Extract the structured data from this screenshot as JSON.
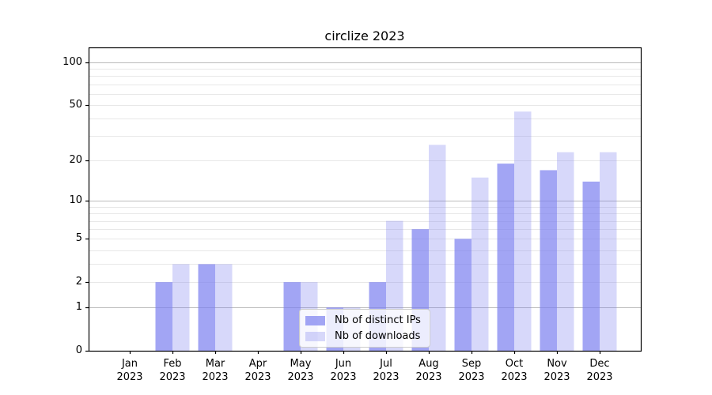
{
  "title": "circlize 2023",
  "legend": {
    "items": [
      {
        "label": "Nb of distinct IPs",
        "color": "rgba(122,127,240,0.70)"
      },
      {
        "label": "Nb of downloads",
        "color": "rgba(122,127,240,0.30)"
      }
    ]
  },
  "colors": {
    "bar_distinct_ips": "rgba(122,127,240,0.70)",
    "bar_downloads": "rgba(122,127,240,0.30)",
    "major_grid": "#bbbbbb",
    "minor_grid": "#e8e8e8",
    "spine": "#000000"
  },
  "chart_data": {
    "type": "bar",
    "title": "circlize 2023",
    "xlabel": "",
    "ylabel": "",
    "y_scale": "log1p",
    "categories": [
      "Jan",
      "Feb",
      "Mar",
      "Apr",
      "May",
      "Jun",
      "Jul",
      "Aug",
      "Sep",
      "Oct",
      "Nov",
      "Dec"
    ],
    "year": "2023",
    "series": [
      {
        "name": "Nb of distinct IPs",
        "values": [
          0,
          2,
          3,
          0,
          2,
          1,
          2,
          6,
          5,
          19,
          17,
          14
        ]
      },
      {
        "name": "Nb of downloads",
        "values": [
          0,
          3,
          3,
          0,
          2,
          1,
          7,
          26,
          15,
          45,
          23,
          23
        ]
      }
    ],
    "yticks": [
      0,
      1,
      2,
      5,
      10,
      20,
      50,
      100
    ],
    "ytick_labels": [
      "0",
      "1",
      "2",
      "5",
      "10",
      "20",
      "50",
      "100"
    ],
    "major_gridlines": [
      1,
      10,
      100
    ],
    "minor_gridlines": [
      2,
      3,
      4,
      5,
      6,
      7,
      8,
      9,
      20,
      30,
      40,
      50,
      60,
      70,
      80,
      90
    ],
    "ylim": [
      0,
      127.5
    ],
    "grid": true,
    "legend_position": "lower center"
  }
}
